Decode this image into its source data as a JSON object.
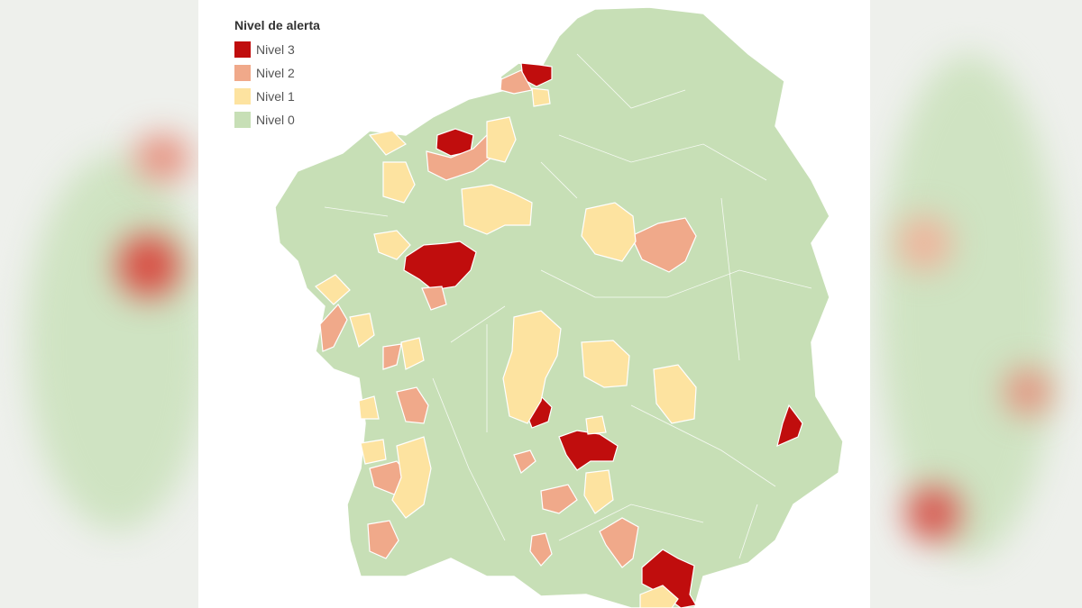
{
  "legend": {
    "title": "Nivel de alerta",
    "items": [
      {
        "label": "Nivel 3",
        "color": "#c00d0d"
      },
      {
        "label": "Nivel 2",
        "color": "#f0a98a"
      },
      {
        "label": "Nivel 1",
        "color": "#fde3a0"
      },
      {
        "label": "Nivel 0",
        "color": "#c7dfb6"
      }
    ]
  },
  "map": {
    "border_color": "#ffffff"
  }
}
